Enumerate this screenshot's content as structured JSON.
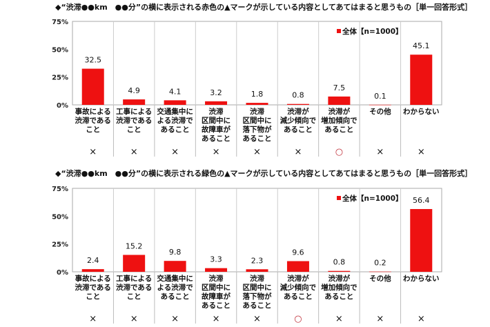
{
  "chart_data": [
    {
      "type": "bar",
      "title": "◆“渋滞●●km　●●分”の横に表示される赤色の▲マークが示している内容としてあてはまると思うもの［単一回答形式］",
      "categories": [
        [
          "事故による",
          "渋滞である",
          "こと"
        ],
        [
          "工事による",
          "渋滞である",
          "こと"
        ],
        [
          "交通集中に",
          "よる渋滞で",
          "あること"
        ],
        [
          "渋滞",
          "区間中に",
          "故障車が",
          "あること"
        ],
        [
          "渋滞",
          "区間中に",
          "落下物が",
          "あること"
        ],
        [
          "渋滞が",
          "減少傾向で",
          "あること"
        ],
        [
          "渋滞が",
          "増加傾向で",
          "あること"
        ],
        [
          "その他"
        ],
        [
          "わからない"
        ]
      ],
      "series": [
        {
          "name": "全体【n=1000】",
          "values": [
            32.5,
            4.9,
            4.1,
            3.2,
            1.8,
            0.8,
            7.5,
            0.1,
            45.1
          ]
        }
      ],
      "value_labels": [
        "32.5",
        "4.9",
        "4.1",
        "3.2",
        "1.8",
        "0.8",
        "7.5",
        "0.1",
        "45.1"
      ],
      "marks": [
        "×",
        "×",
        "×",
        "×",
        "×",
        "×",
        "○",
        "×",
        "×"
      ],
      "yticks": [
        "0%",
        "25%",
        "50%",
        "75%"
      ],
      "ylim": [
        0,
        75
      ],
      "color": "#ee1111"
    },
    {
      "type": "bar",
      "title": "◆“渋滞●●km　●●分”の横に表示される緑色の▲マークが示している内容としてあてはまると思うもの［単一回答形式］",
      "categories": [
        [
          "事故による",
          "渋滞である",
          "こと"
        ],
        [
          "工事による",
          "渋滞である",
          "こと"
        ],
        [
          "交通集中に",
          "よる渋滞で",
          "あること"
        ],
        [
          "渋滞",
          "区間中に",
          "故障車が",
          "あること"
        ],
        [
          "渋滞",
          "区間中に",
          "落下物が",
          "あること"
        ],
        [
          "渋滞が",
          "減少傾向で",
          "あること"
        ],
        [
          "渋滞が",
          "増加傾向で",
          "あること"
        ],
        [
          "その他"
        ],
        [
          "わからない"
        ]
      ],
      "series": [
        {
          "name": "全体【n=1000】",
          "values": [
            2.4,
            15.2,
            9.8,
            3.3,
            2.3,
            9.6,
            0.8,
            0.2,
            56.4
          ]
        }
      ],
      "value_labels": [
        "2.4",
        "15.2",
        "9.8",
        "3.3",
        "2.3",
        "9.6",
        "0.8",
        "0.2",
        "56.4"
      ],
      "marks": [
        "×",
        "×",
        "×",
        "×",
        "×",
        "○",
        "×",
        "×",
        "×"
      ],
      "yticks": [
        "0%",
        "25%",
        "50%",
        "75%"
      ],
      "ylim": [
        0,
        75
      ],
      "color": "#ee1111"
    }
  ]
}
